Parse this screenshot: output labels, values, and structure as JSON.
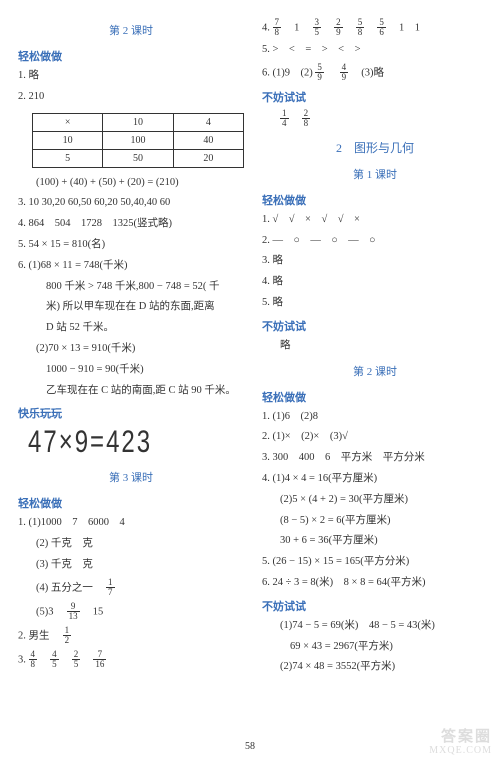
{
  "pageNumber": "58",
  "watermark": {
    "line1": "答案圈",
    "line2": "MXQE.COM"
  },
  "left": {
    "lesson2": "第 2 课时",
    "sec_easy": "轻松做做",
    "q1": "1. 略",
    "q2": "2. 210",
    "table": [
      [
        "×",
        "10",
        "4"
      ],
      [
        "10",
        "100",
        "40"
      ],
      [
        "5",
        "50",
        "20"
      ]
    ],
    "tableSum": "(100) + (40) + (50) + (20) = (210)",
    "q3": "3. 10 30,20 60,50 60,20 50,40,40 60",
    "q4": "4. 864　504　1728　1325(竖式略)",
    "q5": "5. 54 × 15 = 810(名)",
    "q6a": "6. (1)68 × 11 = 748(千米)",
    "q6b": "800 千米 > 748 千米,800 − 748 = 52( 千",
    "q6c": "米) 所以甲车现在在 D 站的东面,距离",
    "q6d": "D 站 52 千米。",
    "q6e": "(2)70 × 13 = 910(千米)",
    "q6f": "1000 − 910 = 90(千米)",
    "q6g": "乙车现在在 C 站的南面,距 C 站 90 千米。",
    "sec_fun": "快乐玩玩",
    "matchstick": "47×9=423",
    "lesson3": "第 3 课时",
    "sec_easy2": "轻松做做",
    "l3q1a": "1. (1)1000　7　6000　4",
    "l3q1b": "(2) 千克　克",
    "l3q1c": "(3) 千克　克",
    "l3q1d_pre": "(4) 五分之一　",
    "l3q1e_pre": "(5)3　",
    "l3q1e_post": "　15",
    "l3q2": "2. 男生　",
    "l3q3_pre": "3. ",
    "fracs": {
      "f17": {
        "n": "1",
        "d": "7"
      },
      "f913": {
        "n": "9",
        "d": "13"
      },
      "f12": {
        "n": "1",
        "d": "2"
      },
      "f48": {
        "n": "4",
        "d": "8"
      },
      "f45": {
        "n": "4",
        "d": "5"
      },
      "f25": {
        "n": "2",
        "d": "5"
      },
      "f716": {
        "n": "7",
        "d": "16"
      }
    }
  },
  "right": {
    "q4_pre": "4. ",
    "q4_post": "　1　1",
    "q4fracs": [
      {
        "n": "7",
        "d": "8"
      },
      {
        "n": "3",
        "d": "5"
      },
      {
        "n": "2",
        "d": "9"
      },
      {
        "n": "5",
        "d": "8"
      },
      {
        "n": "5",
        "d": "6"
      }
    ],
    "q4_one_after_first": "　1　",
    "q5": "5. >　<　=　>　<　>",
    "q6_pre": "6. (1)9　(2)",
    "q6_mid": "　",
    "q6_post": "　(3)略",
    "q6fracs": [
      {
        "n": "5",
        "d": "9"
      },
      {
        "n": "4",
        "d": "9"
      }
    ],
    "sec_try": "不妨试试",
    "tryfracs": [
      {
        "n": "1",
        "d": "4"
      },
      {
        "n": "2",
        "d": "8"
      }
    ],
    "unit": "2　图形与几何",
    "lesson1": "第 1 课时",
    "sec_easy": "轻松做做",
    "g1": "1. √　√　×　√　√　×",
    "g2": "2. ―　○　―　○　―　○",
    "g3": "3. 略",
    "g4": "4. 略",
    "g5": "5. 略",
    "sec_try2": "不妨试试",
    "try2": "略",
    "lesson2": "第 2 课时",
    "sec_easy2": "轻松做做",
    "h1": "1. (1)6　(2)8",
    "h2": "2. (1)×　(2)×　(3)√",
    "h3": "3. 300　400　6　平方米　平方分米",
    "h4a": "4. (1)4 × 4 = 16(平方厘米)",
    "h4b": "(2)5 × (4 + 2) = 30(平方厘米)",
    "h4c": "(8 − 5) × 2 = 6(平方厘米)",
    "h4d": "30 + 6 = 36(平方厘米)",
    "h5": "5. (26 − 15) × 15 = 165(平方分米)",
    "h6": "6. 24 ÷ 3 = 8(米)　8 × 8 = 64(平方米)",
    "sec_try3": "不妨试试",
    "t1": "(1)74 − 5 = 69(米)　48 − 5 = 43(米)",
    "t2": "69 × 43 = 2967(平方米)",
    "t3": "(2)74 × 48 = 3552(平方米)"
  }
}
